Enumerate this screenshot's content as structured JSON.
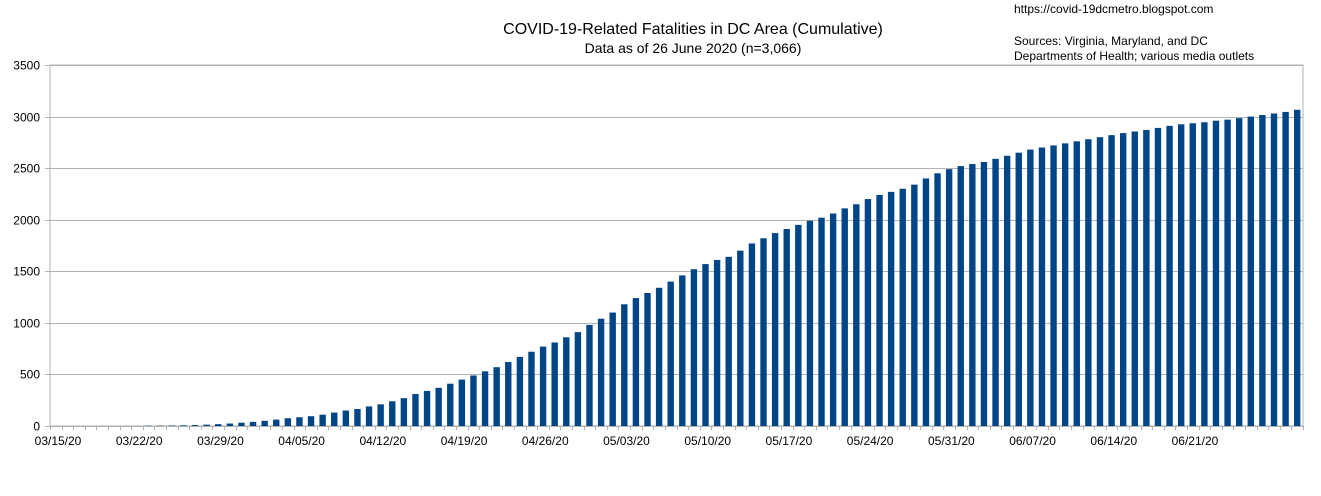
{
  "chart_data": {
    "type": "bar",
    "title": "COVID-19-Related Fatalities in DC Area (Cumulative)",
    "subtitle": "Data as of 26 June 2020 (n=3,066)",
    "xlabel": "",
    "ylabel": "",
    "ylim": [
      0,
      3500
    ],
    "yticks": [
      0,
      500,
      1000,
      1500,
      2000,
      2500,
      3000,
      3500
    ],
    "grid": true,
    "legend": "none",
    "start_date": "03/15/20",
    "x_tick_labels": [
      "03/15/20",
      "03/22/20",
      "03/29/20",
      "04/05/20",
      "04/12/20",
      "04/19/20",
      "04/26/20",
      "05/03/20",
      "05/10/20",
      "05/17/20",
      "05/24/20",
      "05/31/20",
      "06/07/20",
      "06/14/20",
      "06/21/20"
    ],
    "bar_color": "#004586",
    "values": [
      0,
      0,
      0,
      0,
      0,
      0,
      0,
      0,
      3,
      4,
      5,
      7,
      9,
      13,
      18,
      24,
      32,
      40,
      50,
      62,
      75,
      85,
      95,
      110,
      130,
      150,
      165,
      190,
      210,
      240,
      270,
      310,
      340,
      370,
      410,
      450,
      490,
      530,
      570,
      620,
      670,
      720,
      770,
      810,
      860,
      910,
      980,
      1040,
      1100,
      1180,
      1240,
      1290,
      1340,
      1400,
      1460,
      1520,
      1570,
      1610,
      1640,
      1700,
      1770,
      1820,
      1870,
      1910,
      1950,
      1990,
      2020,
      2060,
      2110,
      2150,
      2200,
      2240,
      2270,
      2300,
      2340,
      2400,
      2450,
      2490,
      2520,
      2540,
      2560,
      2590,
      2620,
      2650,
      2680,
      2700,
      2720,
      2740,
      2760,
      2780,
      2800,
      2820,
      2840,
      2855,
      2870,
      2890,
      2910,
      2925,
      2935,
      2945,
      2960,
      2970,
      2985,
      3000,
      3015,
      3030,
      3045,
      3066
    ]
  },
  "header": {
    "url": "https://covid-19dcmetro.blogspot.com",
    "sources_line1": "Sources: Virginia, Maryland, and DC",
    "sources_line2": "Departments of Health; various media outlets"
  }
}
